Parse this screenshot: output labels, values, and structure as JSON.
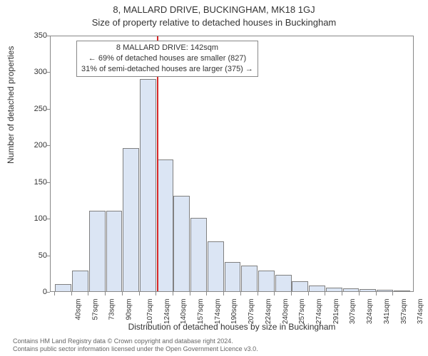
{
  "title_line1": "8, MALLARD DRIVE, BUCKINGHAM, MK18 1GJ",
  "title_line2": "Size of property relative to detached houses in Buckingham",
  "ylabel": "Number of detached properties",
  "xlabel": "Distribution of detached houses by size in Buckingham",
  "chart": {
    "type": "histogram",
    "background_color": "#ffffff",
    "border_color": "#888888",
    "bar_fill": "#dbe5f4",
    "bar_border": "#808080",
    "marker_color": "#d62728",
    "ylim": [
      0,
      350
    ],
    "ytick_step": 50,
    "x_tick_labels": [
      "40sqm",
      "57sqm",
      "73sqm",
      "90sqm",
      "107sqm",
      "124sqm",
      "140sqm",
      "157sqm",
      "174sqm",
      "190sqm",
      "207sqm",
      "224sqm",
      "240sqm",
      "257sqm",
      "274sqm",
      "291sqm",
      "307sqm",
      "324sqm",
      "341sqm",
      "357sqm",
      "374sqm"
    ],
    "bar_values": [
      10,
      28,
      110,
      110,
      195,
      290,
      180,
      130,
      100,
      68,
      40,
      35,
      28,
      22,
      14,
      8,
      5,
      4,
      3,
      2,
      1
    ],
    "marker_bin_index": 6,
    "annotation": {
      "line1": "8 MALLARD DRIVE: 142sqm",
      "line2": "← 69% of detached houses are smaller (827)",
      "line3": "31% of semi-detached houses are larger (375) →"
    }
  },
  "footer": {
    "line1": "Contains HM Land Registry data © Crown copyright and database right 2024.",
    "line2": "Contains public sector information licensed under the Open Government Licence v3.0."
  },
  "style": {
    "title_fontsize": 13,
    "axis_label_fontsize": 12,
    "tick_fontsize": 11,
    "xtick_fontsize": 10,
    "annot_fontsize": 11,
    "footer_fontsize": 9
  }
}
